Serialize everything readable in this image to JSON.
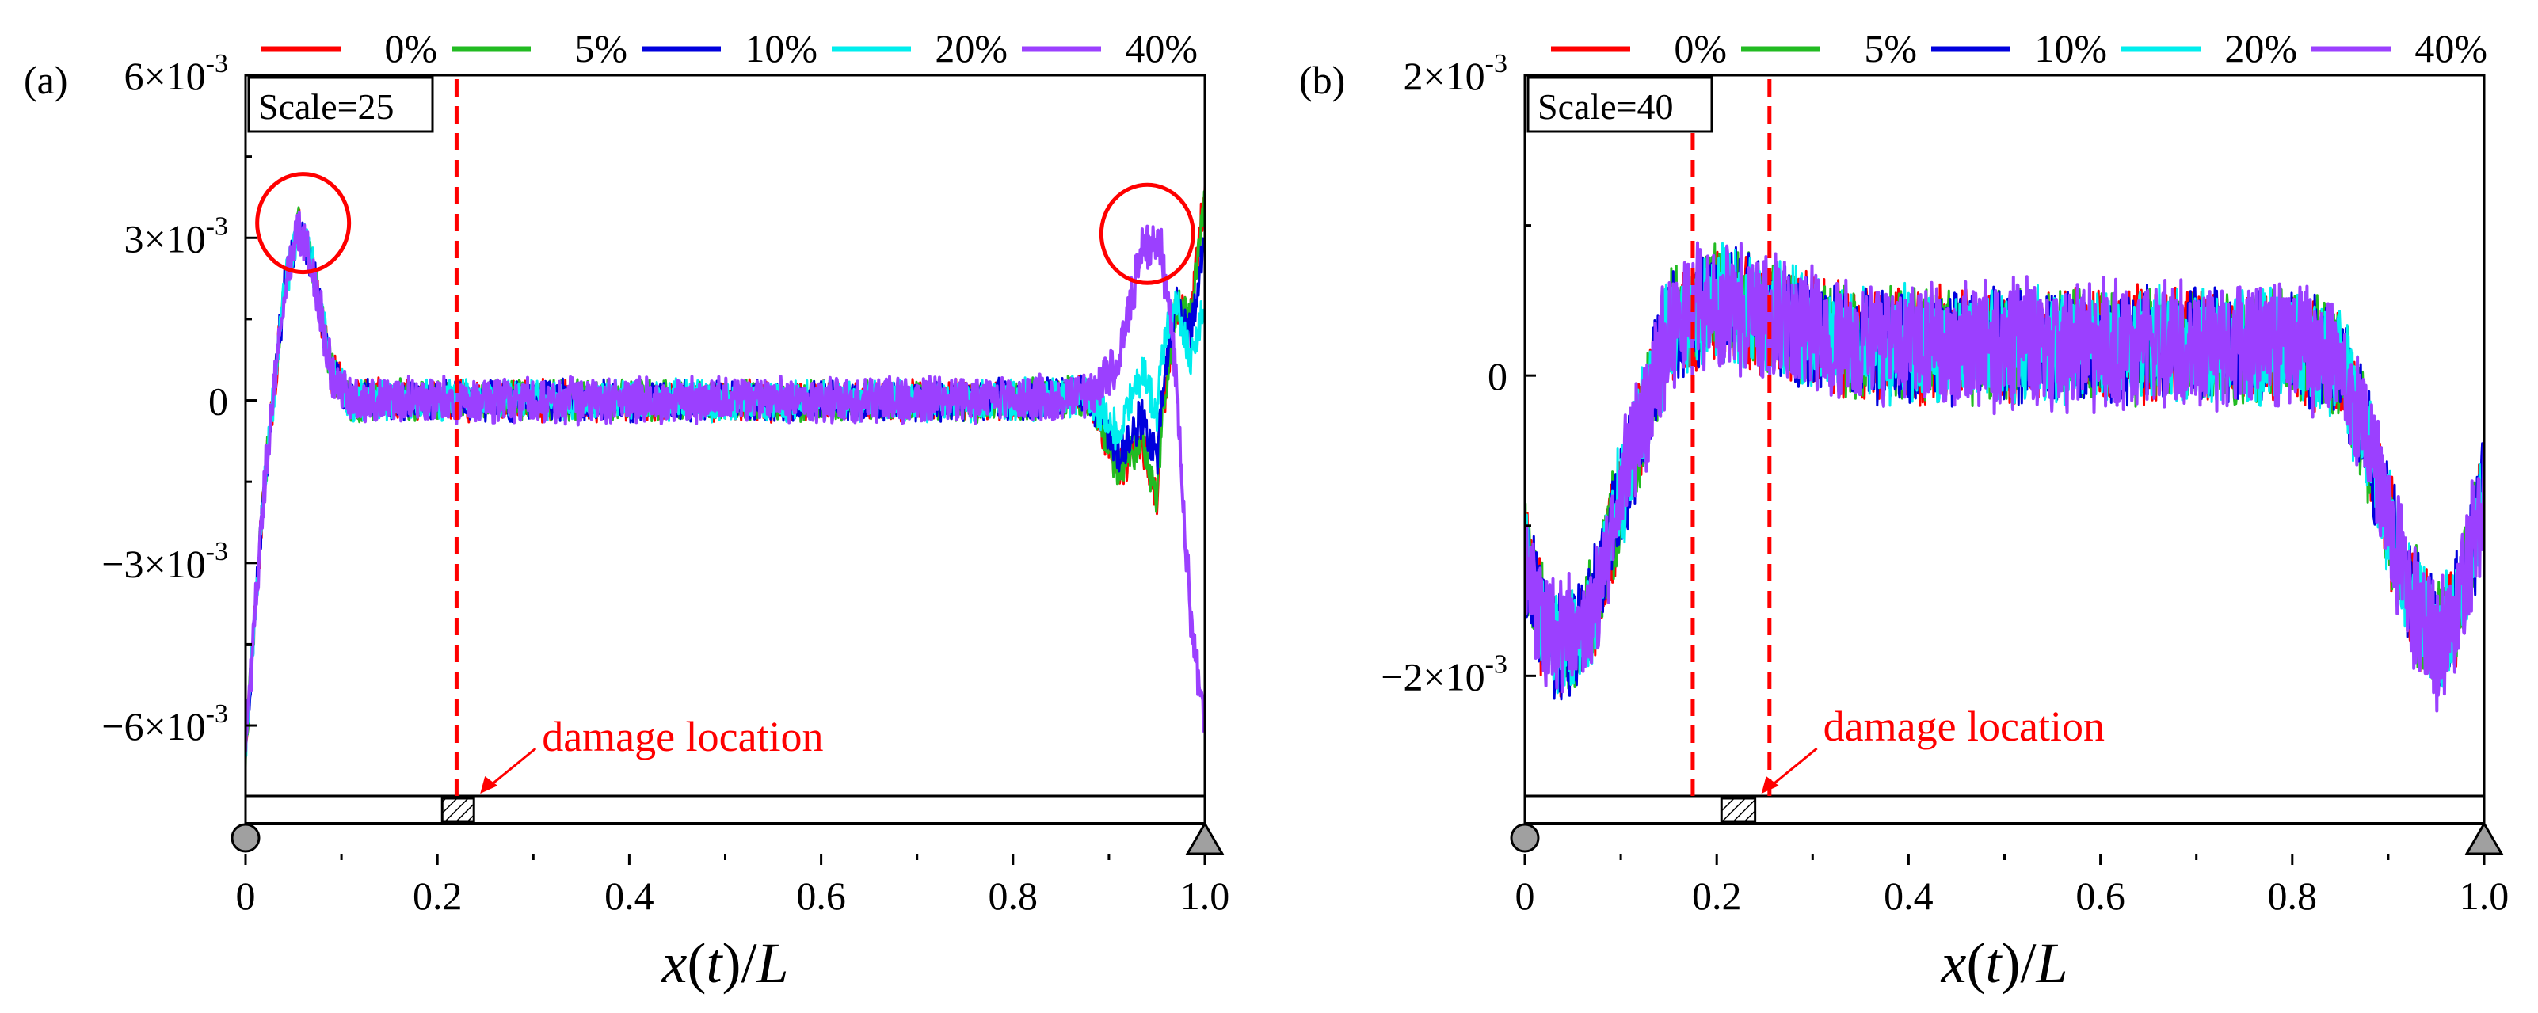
{
  "colors": {
    "0%": "#ff0000",
    "5%": "#22bb22",
    "10%": "#0000dd",
    "20%": "#00eeee",
    "40%": "#9b40ff",
    "annotation": "#ff0000",
    "frame": "#000000",
    "support": "#a0a0a0"
  },
  "chart_data": [
    {
      "type": "line",
      "panel_label": "(a)",
      "xlabel": "x(t)/L",
      "ylabel": "",
      "xlim": [
        0,
        1.0
      ],
      "ylim": [
        -0.0073,
        0.006
      ],
      "x_ticks": [
        0,
        0.2,
        0.4,
        0.6,
        0.8,
        1.0
      ],
      "x_tick_labels": [
        "0",
        "0.2",
        "0.4",
        "0.6",
        "0.8",
        "1.0"
      ],
      "y_ticks": [
        -0.006,
        -0.003,
        0,
        0.003,
        0.006
      ],
      "y_tick_labels": [
        {
          "mantissa": "−6×10",
          "exp": "-3"
        },
        {
          "mantissa": "−3×10",
          "exp": "-3"
        },
        {
          "mantissa": "0",
          "exp": ""
        },
        {
          "mantissa": "3×10",
          "exp": "-3"
        },
        {
          "mantissa": "6×10",
          "exp": "-3"
        }
      ],
      "legend": [
        "0%",
        "5%",
        "10%",
        "20%",
        "40%"
      ],
      "scale_label": "Scale=25",
      "damage_lines_x": [
        0.22
      ],
      "damage_element_x": [
        0.205,
        0.238
      ],
      "damage_text": "damage location",
      "circles": [
        {
          "x": 0.06,
          "y": 0.0032
        },
        {
          "x": 0.94,
          "y": 0.003
        }
      ],
      "series_shape": {
        "x": [
          0,
          0.02,
          0.04,
          0.055,
          0.07,
          0.09,
          0.11,
          0.2,
          0.5,
          0.8,
          0.88,
          0.91,
          0.935,
          0.955,
          0.97,
          0.985,
          1.0
        ],
        "y": [
          -0.0064,
          -0.0015,
          0.002,
          0.0032,
          0.0025,
          0.0005,
          0,
          0,
          0,
          0,
          0.0001,
          0.0007,
          0.0029,
          0.0028,
          0.0005,
          -0.004,
          -0.0062
        ],
        "noise": 0.00042,
        "name": "40%"
      },
      "series_divergence": {
        "x_from": 0.88,
        "values_at_0_95": {
          "0%": -0.0018,
          "5%": -0.0018,
          "10%": -0.0012,
          "20%": -0.0002,
          "40%": 0.0028
        },
        "end_values": {
          "0%": 0.0038,
          "5%": 0.0037,
          "10%": 0.003,
          "20%": 0.0018,
          "40%": -0.0062
        }
      }
    },
    {
      "type": "line",
      "panel_label": "(b)",
      "xlabel": "x(t)/L",
      "ylabel": "",
      "xlim": [
        0,
        1.0
      ],
      "ylim": [
        -0.0028,
        0.002
      ],
      "x_ticks": [
        0,
        0.2,
        0.4,
        0.6,
        0.8,
        1.0
      ],
      "x_tick_labels": [
        "0",
        "0.2",
        "0.4",
        "0.6",
        "0.8",
        "1.0"
      ],
      "y_ticks": [
        -0.002,
        0,
        0.002
      ],
      "y_tick_labels": [
        {
          "mantissa": "−2×10",
          "exp": "-3"
        },
        {
          "mantissa": "0",
          "exp": ""
        },
        {
          "mantissa": "2×10",
          "exp": "-3"
        }
      ],
      "legend": [
        "0%",
        "5%",
        "10%",
        "20%",
        "40%"
      ],
      "scale_label": "Scale=40",
      "damage_lines_x": [
        0.175,
        0.255
      ],
      "damage_element_x": [
        0.205,
        0.24
      ],
      "damage_text": "damage location",
      "circles": [],
      "series_shape": {
        "x": [
          0,
          0.02,
          0.04,
          0.07,
          0.1,
          0.15,
          0.2,
          0.25,
          0.35,
          0.5,
          0.65,
          0.8,
          0.85,
          0.88,
          0.92,
          0.95,
          0.97,
          1.0
        ],
        "y": [
          -0.0012,
          -0.0017,
          -0.0018,
          -0.0016,
          -0.0008,
          0.0003,
          0.0005,
          0.0004,
          0.0002,
          0.0002,
          0.0002,
          0.0002,
          0.0001,
          -0.0005,
          -0.0014,
          -0.0018,
          -0.0016,
          -0.0008
        ],
        "noise": 0.00042,
        "name": "40%"
      },
      "series_divergence": null
    }
  ]
}
